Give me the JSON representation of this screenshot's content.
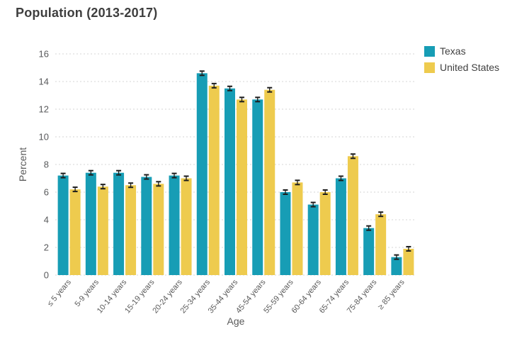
{
  "title": "Population (2013-2017)",
  "colors": {
    "texas": "#179db5",
    "united_states": "#eecb4e",
    "grid": "#d6d6d6",
    "axis_text": "#5a5a5a",
    "tick_text": "#58595b",
    "title_text": "#3e3e3e",
    "error_bar": "#1c1c1c"
  },
  "legend": {
    "items": [
      {
        "label": "Texas"
      },
      {
        "label": "United States"
      }
    ]
  },
  "chart_data": {
    "type": "bar",
    "title": "Population (2013-2017)",
    "categories": [
      "≤ 5 years",
      "5-9 years",
      "10-14 years",
      "15-19 years",
      "20-24 years",
      "25-34 years",
      "35-44 years",
      "45-54 years",
      "55-59 years",
      "60-64 years",
      "65-74 years",
      "75-84 years",
      "≥ 85 years"
    ],
    "series": [
      {
        "name": "Texas",
        "color": "#179db5",
        "values": [
          7.2,
          7.4,
          7.4,
          7.1,
          7.2,
          14.6,
          13.5,
          12.7,
          6.0,
          5.1,
          7.0,
          3.4,
          1.3
        ]
      },
      {
        "name": "United States",
        "color": "#eecb4e",
        "values": [
          6.2,
          6.4,
          6.5,
          6.6,
          7.0,
          13.7,
          12.7,
          13.4,
          6.7,
          6.0,
          8.6,
          4.4,
          1.9
        ]
      }
    ],
    "xlabel": "Age",
    "ylabel": "Percent",
    "ylim": [
      0,
      16
    ],
    "ytick_step": 2,
    "grid": "dashed-horizontal",
    "legend_position": "top-right",
    "error_bars": true
  }
}
